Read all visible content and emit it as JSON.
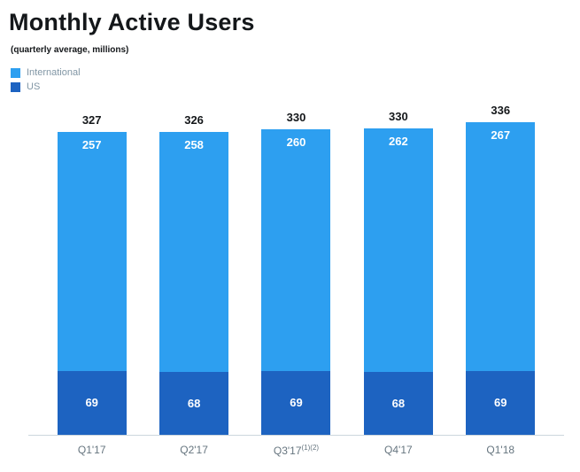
{
  "chart_data": {
    "type": "bar",
    "stacked": true,
    "title": "Monthly Active Users",
    "subtitle": "(quarterly average, millions)",
    "categories": [
      {
        "label": "Q1'17",
        "sup": ""
      },
      {
        "label": "Q2'17",
        "sup": ""
      },
      {
        "label": "Q3'17",
        "sup": "(1)(2)"
      },
      {
        "label": "Q4'17",
        "sup": ""
      },
      {
        "label": "Q1'18",
        "sup": ""
      }
    ],
    "series": [
      {
        "name": "International",
        "color": "#2d9ff0",
        "values": [
          257,
          258,
          260,
          262,
          267
        ]
      },
      {
        "name": "US",
        "color": "#1d63c1",
        "values": [
          69,
          68,
          69,
          68,
          69
        ]
      }
    ],
    "totals": [
      327,
      326,
      330,
      330,
      336
    ],
    "xlabel": "",
    "ylabel": "",
    "ylim": [
      0,
      360
    ],
    "grid": false,
    "legend_position": "top-left"
  }
}
